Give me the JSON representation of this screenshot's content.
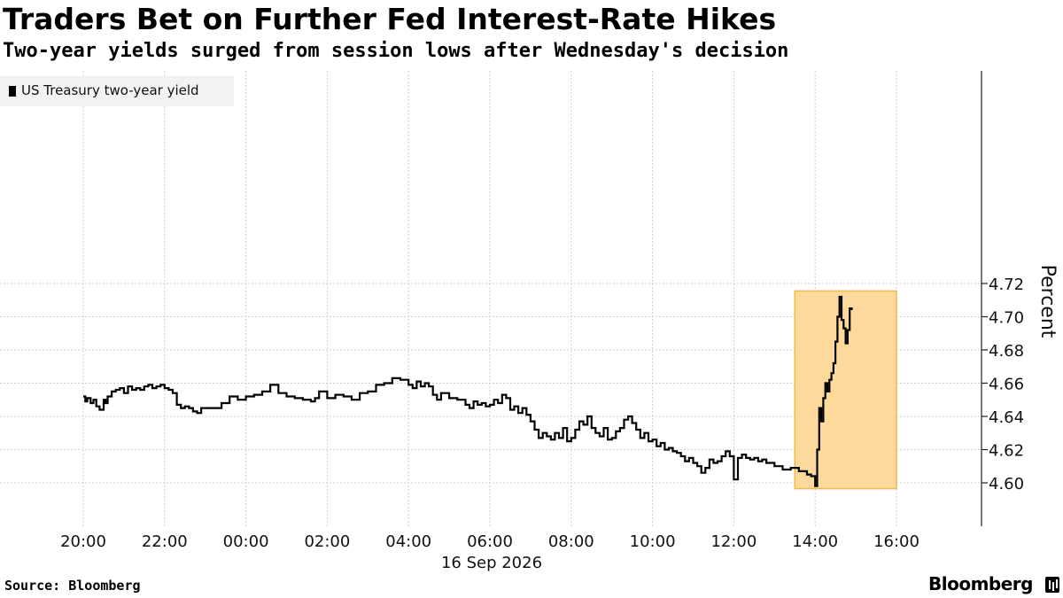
{
  "header": {
    "title": "Traders Bet on Further Fed Interest-Rate Hikes",
    "subtitle": "Two-year yields surged from session lows after Wednesday's decision"
  },
  "footer": {
    "source": "Source: Bloomberg",
    "brand": "Bloomberg"
  },
  "colors": {
    "line": "#000000",
    "highlight_fill": "#fdd99b",
    "highlight_stroke": "#f0b94e",
    "grid": "#cccccc"
  },
  "chart_data": {
    "type": "line",
    "title": "Traders Bet on Further Fed Interest-Rate Hikes",
    "subtitle": "Two-year yields surged from session lows after Wednesday's decision",
    "xlabel": "16 Sep 2026",
    "ylabel": "Percent",
    "x_unit": "hours",
    "x_ticks": [
      {
        "x": 0,
        "label": "20:00"
      },
      {
        "x": 2,
        "label": "22:00"
      },
      {
        "x": 4,
        "label": "00:00"
      },
      {
        "x": 6,
        "label": "02:00"
      },
      {
        "x": 8,
        "label": "04:00"
      },
      {
        "x": 10,
        "label": "06:00"
      },
      {
        "x": 12,
        "label": "08:00"
      },
      {
        "x": 14,
        "label": "10:00"
      },
      {
        "x": 16,
        "label": "12:00"
      },
      {
        "x": 18,
        "label": "14:00"
      },
      {
        "x": 20,
        "label": "16:00"
      }
    ],
    "y_ticks": [
      "4.60",
      "4.62",
      "4.64",
      "4.66",
      "4.68",
      "4.70",
      "4.72"
    ],
    "ylim": [
      4.588,
      4.722
    ],
    "xlim": [
      -1.0,
      22.5
    ],
    "grid": true,
    "legend": {
      "position": "top-left"
    },
    "highlight": {
      "x_start": 17.5,
      "x_end": 20.0,
      "y_start": 4.5965,
      "y_end": 4.7155
    },
    "series": [
      {
        "name": "US Treasury two-year yield",
        "x": [
          0.0,
          0.05,
          0.1,
          0.18,
          0.25,
          0.32,
          0.4,
          0.5,
          0.55,
          0.6,
          0.7,
          0.8,
          0.9,
          1.0,
          1.1,
          1.2,
          1.3,
          1.4,
          1.5,
          1.6,
          1.7,
          1.8,
          1.9,
          2.0,
          2.1,
          2.2,
          2.3,
          2.4,
          2.5,
          2.6,
          2.7,
          2.8,
          2.9,
          3.0,
          3.2,
          3.4,
          3.6,
          3.8,
          4.0,
          4.2,
          4.4,
          4.6,
          4.8,
          5.0,
          5.2,
          5.4,
          5.6,
          5.7,
          5.8,
          6.0,
          6.2,
          6.4,
          6.6,
          6.8,
          7.0,
          7.2,
          7.4,
          7.6,
          7.8,
          8.0,
          8.1,
          8.2,
          8.3,
          8.4,
          8.5,
          8.6,
          8.7,
          8.8,
          9.0,
          9.2,
          9.4,
          9.5,
          9.6,
          9.7,
          9.8,
          9.9,
          10.0,
          10.1,
          10.2,
          10.3,
          10.4,
          10.5,
          10.6,
          10.7,
          10.8,
          10.9,
          11.0,
          11.1,
          11.2,
          11.3,
          11.4,
          11.5,
          11.6,
          11.7,
          11.8,
          11.9,
          12.0,
          12.1,
          12.2,
          12.3,
          12.4,
          12.5,
          12.6,
          12.7,
          12.8,
          12.9,
          13.0,
          13.1,
          13.2,
          13.3,
          13.4,
          13.5,
          13.6,
          13.7,
          13.8,
          13.9,
          14.0,
          14.1,
          14.2,
          14.3,
          14.4,
          14.5,
          14.6,
          14.7,
          14.8,
          14.9,
          15.0,
          15.1,
          15.2,
          15.3,
          15.4,
          15.5,
          15.6,
          15.7,
          15.8,
          15.9,
          16.0,
          16.1,
          16.2,
          16.3,
          16.4,
          16.5,
          16.6,
          16.7,
          16.8,
          17.0,
          17.2,
          17.4,
          17.6,
          17.8,
          17.9,
          18.0,
          18.05,
          18.1,
          18.15,
          18.2,
          18.25,
          18.3,
          18.35,
          18.4,
          18.45,
          18.5,
          18.55,
          18.6,
          18.65,
          18.7,
          18.75,
          18.8,
          18.85,
          18.9
        ],
        "values": [
          4.652,
          4.649,
          4.651,
          4.648,
          4.65,
          4.646,
          4.644,
          4.65,
          4.648,
          4.652,
          4.655,
          4.656,
          4.657,
          4.654,
          4.658,
          4.656,
          4.657,
          4.656,
          4.658,
          4.659,
          4.657,
          4.658,
          4.659,
          4.657,
          4.656,
          4.654,
          4.647,
          4.645,
          4.646,
          4.645,
          4.643,
          4.642,
          4.645,
          4.645,
          4.645,
          4.648,
          4.652,
          4.65,
          4.652,
          4.653,
          4.655,
          4.659,
          4.654,
          4.652,
          4.651,
          4.65,
          4.649,
          4.651,
          4.655,
          4.651,
          4.653,
          4.652,
          4.65,
          4.654,
          4.655,
          4.659,
          4.66,
          4.663,
          4.662,
          4.659,
          4.657,
          4.661,
          4.658,
          4.66,
          4.658,
          4.653,
          4.65,
          4.654,
          4.651,
          4.65,
          4.647,
          4.645,
          4.649,
          4.647,
          4.648,
          4.646,
          4.647,
          4.65,
          4.648,
          4.653,
          4.651,
          4.644,
          4.646,
          4.642,
          4.645,
          4.641,
          4.637,
          4.632,
          4.627,
          4.63,
          4.628,
          4.626,
          4.63,
          4.627,
          4.633,
          4.625,
          4.627,
          4.632,
          4.637,
          4.635,
          4.64,
          4.633,
          4.63,
          4.628,
          4.633,
          4.626,
          4.627,
          4.631,
          4.633,
          4.638,
          4.64,
          4.636,
          4.632,
          4.627,
          4.63,
          4.625,
          4.626,
          4.622,
          4.624,
          4.62,
          4.621,
          4.619,
          4.618,
          4.616,
          4.613,
          4.615,
          4.612,
          4.61,
          4.606,
          4.609,
          4.614,
          4.612,
          4.613,
          4.616,
          4.619,
          4.616,
          4.602,
          4.615,
          4.617,
          4.615,
          4.614,
          4.615,
          4.613,
          4.614,
          4.612,
          4.61,
          4.608,
          4.609,
          4.607,
          4.605,
          4.604,
          4.598,
          4.62,
          4.645,
          4.637,
          4.651,
          4.66,
          4.655,
          4.662,
          4.666,
          4.672,
          4.685,
          4.7,
          4.712,
          4.698,
          4.693,
          4.684,
          4.692,
          4.705,
          4.704
        ]
      }
    ]
  }
}
